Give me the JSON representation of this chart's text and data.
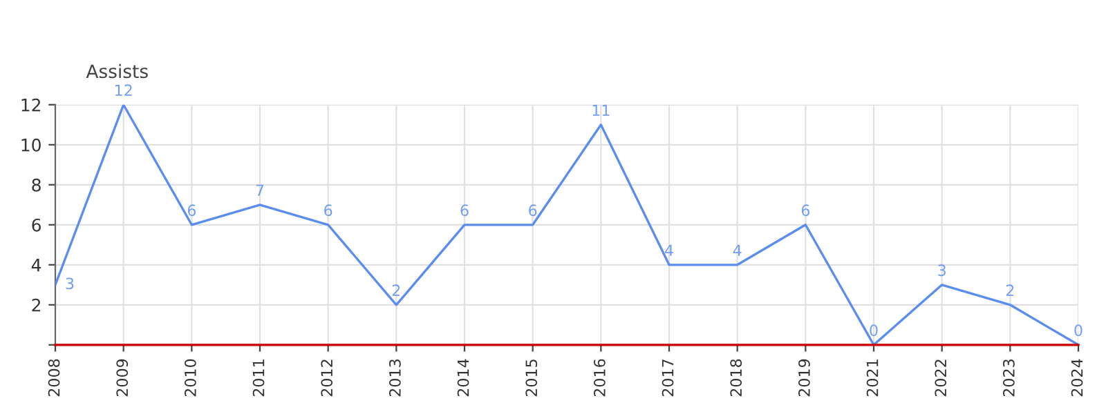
{
  "chart_data": {
    "type": "line",
    "title": "Assists",
    "categories": [
      "2008",
      "2009",
      "2010",
      "2011",
      "2012",
      "2013",
      "2014",
      "2015",
      "2016",
      "2017",
      "2018",
      "2019",
      "2021",
      "2022",
      "2023",
      "2024"
    ],
    "series": [
      {
        "color": "#5b8def",
        "values": [
          3,
          12,
          6,
          7,
          6,
          2,
          6,
          6,
          11,
          4,
          4,
          6,
          0,
          3,
          2,
          0
        ]
      }
    ],
    "ylim": [
      0,
      12
    ],
    "yticks": [
      {
        "value": 0,
        "label": null
      },
      2,
      4,
      6,
      8,
      10,
      12
    ],
    "grid": true,
    "data_labels": true,
    "marker": "none",
    "line_style": "solid",
    "ref_lines": [
      {
        "axis": "y",
        "value": 0,
        "color": "#cc0000"
      }
    ]
  }
}
